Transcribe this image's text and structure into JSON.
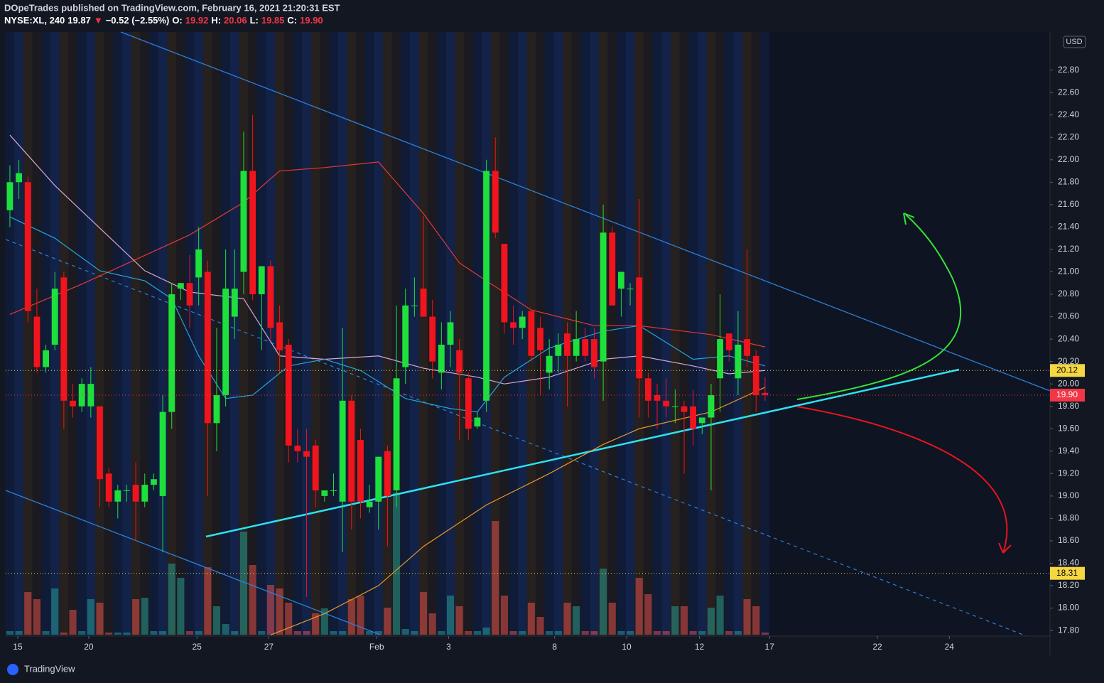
{
  "header": {
    "publisher": "DOpeTrades published on TradingView.com, February 16, 2021 21:20:31 EST",
    "legend": [
      {
        "text": "NYSE:XL, 240",
        "color": "#ffffff"
      },
      {
        "text": "19.87",
        "color": "#ffffff"
      },
      {
        "text": "▼",
        "color": "#f23645"
      },
      {
        "text": "−0.52 (−2.55%)",
        "color": "#ffffff"
      },
      {
        "text": "O:",
        "color": "#ffffff"
      },
      {
        "text": "19.92",
        "color": "#f23645"
      },
      {
        "text": "H:",
        "color": "#ffffff"
      },
      {
        "text": "20.06",
        "color": "#f23645"
      },
      {
        "text": "L:",
        "color": "#ffffff"
      },
      {
        "text": "19.85",
        "color": "#f23645"
      },
      {
        "text": "C:",
        "color": "#ffffff"
      },
      {
        "text": "19.90",
        "color": "#f23645"
      }
    ],
    "currency": "USD",
    "brand": "TradingView"
  },
  "chart_data": {
    "type": "candlestick",
    "xlim": [
      -0.47,
      115.7
    ],
    "xticks": [
      {
        "value": 0.87,
        "label": "15"
      },
      {
        "value": 8.77,
        "label": "20"
      },
      {
        "value": 20.8,
        "label": "25"
      },
      {
        "value": 28.8,
        "label": "27"
      },
      {
        "value": 40.8,
        "label": "Feb"
      },
      {
        "value": 48.8,
        "label": "3"
      },
      {
        "value": 60.6,
        "label": "8"
      },
      {
        "value": 68.6,
        "label": "10"
      },
      {
        "value": 76.7,
        "label": "12"
      },
      {
        "value": 84.5,
        "label": "17"
      },
      {
        "value": 96.5,
        "label": "22"
      },
      {
        "value": 104.5,
        "label": "24"
      }
    ],
    "ylim": [
      17.75,
      23.14
    ],
    "yticks": [
      {
        "value": 17.8,
        "label": "17.80"
      },
      {
        "value": 18,
        "label": "18.00"
      },
      {
        "value": 18.2,
        "label": "18.20"
      },
      {
        "value": 18.4,
        "label": "18.40"
      },
      {
        "value": 18.6,
        "label": "18.60"
      },
      {
        "value": 18.8,
        "label": "18.80"
      },
      {
        "value": 19,
        "label": "19.00"
      },
      {
        "value": 19.2,
        "label": "19.20"
      },
      {
        "value": 19.4,
        "label": "19.40"
      },
      {
        "value": 19.6,
        "label": "19.60"
      },
      {
        "value": 19.8,
        "label": "19.80"
      },
      {
        "value": 20,
        "label": "20.00"
      },
      {
        "value": 20.2,
        "label": "20.20"
      },
      {
        "value": 20.4,
        "label": "20.40"
      },
      {
        "value": 20.6,
        "label": "20.60"
      },
      {
        "value": 20.8,
        "label": "20.80"
      },
      {
        "value": 21,
        "label": "21.00"
      },
      {
        "value": 21.2,
        "label": "21.20"
      },
      {
        "value": 21.4,
        "label": "21.40"
      },
      {
        "value": 21.6,
        "label": "21.60"
      },
      {
        "value": 21.8,
        "label": "21.80"
      },
      {
        "value": 22,
        "label": "22.00"
      },
      {
        "value": 22.2,
        "label": "22.20"
      },
      {
        "value": 22.4,
        "label": "22.40"
      },
      {
        "value": 22.6,
        "label": "22.60"
      },
      {
        "value": 22.8,
        "label": "22.80"
      }
    ],
    "up_color": "#1ee03c",
    "down_color": "#f0141e",
    "volume_up_color": "rgba(38,166,154,0.5)",
    "volume_down_color": "rgba(239,83,80,0.5)",
    "open": [
      21.55,
      21.8,
      21.8,
      20.6,
      20.15,
      20.35,
      20.95,
      19.85,
      19.8,
      19.8,
      19.8,
      19.2,
      18.95,
      19.05,
      19.1,
      18.95,
      19.1,
      19.0,
      19.75,
      20.85,
      20.9,
      20.95,
      21.0,
      19.65,
      19.9,
      20.6,
      21.0,
      21.9,
      20.8,
      21.05,
      20.55,
      20.35,
      19.45,
      19.4,
      19.45,
      19.0,
      19.05,
      18.95,
      19.85,
      19.5,
      18.9,
      18.95,
      19.4,
      19.05,
      20.15,
      20.7,
      20.85,
      20.6,
      20.1,
      20.35,
      20.3,
      20.05,
      19.62,
      19.85,
      21.9,
      21.25,
      20.55,
      20.5,
      20.65,
      20.5,
      20.1,
      20.25,
      20.45,
      20.25,
      20.4,
      20.4,
      20.2,
      21.35,
      20.85,
      20.85,
      20.95,
      20.05,
      19.9,
      19.85,
      19.8,
      19.8,
      19.8,
      19.65,
      19.7,
      20.05,
      20.45,
      20.05,
      20.4,
      20.25,
      19.92
    ],
    "high": [
      21.95,
      22.0,
      21.85,
      20.85,
      20.35,
      21.0,
      21.0,
      20.0,
      20.05,
      20.15,
      19.8,
      19.25,
      19.1,
      19.1,
      19.3,
      19.2,
      19.2,
      19.9,
      20.9,
      20.9,
      21.15,
      21.4,
      21.1,
      20.5,
      21.2,
      21.2,
      22.25,
      22.4,
      21.05,
      21.1,
      20.7,
      20.4,
      19.6,
      19.6,
      19.5,
      19.05,
      19.2,
      20.5,
      19.9,
      19.6,
      19.1,
      19.35,
      19.45,
      20.7,
      20.85,
      20.95,
      21.5,
      20.75,
      20.55,
      20.65,
      20.4,
      20.1,
      19.75,
      22.0,
      22.2,
      21.25,
      20.7,
      20.65,
      20.65,
      20.6,
      20.4,
      20.45,
      20.55,
      20.65,
      20.5,
      20.5,
      21.6,
      21.4,
      21.0,
      20.9,
      21.65,
      20.1,
      20.0,
      20.05,
      19.95,
      19.85,
      19.95,
      19.7,
      20.0,
      20.8,
      20.45,
      20.65,
      21.2,
      20.3,
      20.06
    ],
    "low": [
      21.4,
      21.65,
      20.55,
      20.1,
      20.1,
      20.3,
      19.6,
      19.7,
      19.75,
      19.7,
      18.9,
      18.9,
      18.8,
      18.95,
      18.6,
      18.9,
      19.05,
      18.5,
      19.6,
      20.75,
      20.5,
      20.7,
      19.0,
      19.4,
      19.8,
      20.4,
      20.8,
      20.75,
      20.3,
      20.4,
      20.1,
      19.3,
      19.3,
      18.1,
      18.9,
      18.95,
      19.0,
      18.5,
      18.7,
      18.8,
      18.85,
      18.7,
      18.55,
      18.9,
      20.0,
      20.6,
      20.6,
      20.05,
      19.95,
      20.15,
      19.5,
      19.5,
      19.6,
      19.75,
      21.3,
      20.45,
      20.35,
      20.4,
      20.2,
      19.9,
      19.95,
      20.1,
      19.8,
      20.2,
      20.2,
      20.05,
      19.85,
      20.7,
      20.6,
      20.7,
      19.7,
      19.7,
      19.6,
      19.7,
      19.65,
      19.2,
      19.45,
      19.55,
      19.05,
      19.75,
      20.2,
      19.9,
      20.15,
      19.75,
      19.85
    ],
    "close": [
      21.8,
      21.88,
      20.65,
      20.15,
      20.3,
      20.85,
      19.85,
      19.8,
      20.0,
      20.0,
      19.15,
      18.95,
      19.05,
      19.05,
      18.95,
      19.1,
      19.15,
      19.75,
      20.8,
      20.9,
      20.7,
      21.2,
      19.65,
      19.9,
      20.85,
      20.85,
      21.9,
      20.8,
      21.05,
      20.5,
      20.3,
      19.45,
      19.4,
      19.35,
      19.05,
      19.05,
      19.05,
      19.85,
      18.95,
      18.95,
      18.95,
      19.35,
      19.0,
      20.05,
      20.7,
      20.7,
      20.6,
      20.2,
      20.35,
      20.55,
      20.1,
      19.6,
      19.7,
      21.9,
      21.35,
      20.55,
      20.5,
      20.6,
      20.25,
      20.3,
      20.25,
      20.35,
      20.25,
      20.4,
      20.25,
      20.15,
      21.35,
      20.7,
      21.0,
      20.85,
      20.05,
      19.85,
      19.85,
      19.8,
      19.8,
      19.75,
      19.6,
      19.7,
      19.9,
      20.4,
      20.3,
      20.35,
      20.25,
      19.9,
      19.9
    ],
    "volume": [
      5,
      5,
      60,
      50,
      5,
      65,
      3,
      35,
      5,
      50,
      45,
      3,
      3,
      3,
      50,
      52,
      5,
      5,
      100,
      80,
      5,
      5,
      95,
      40,
      15,
      5,
      145,
      98,
      5,
      70,
      65,
      45,
      5,
      5,
      30,
      37,
      5,
      5,
      50,
      55,
      5,
      5,
      38,
      200,
      8,
      5,
      60,
      30,
      5,
      55,
      40,
      5,
      5,
      10,
      160,
      55,
      5,
      5,
      45,
      25,
      5,
      5,
      45,
      40,
      5,
      5,
      93,
      45,
      5,
      5,
      80,
      57,
      5,
      5,
      40,
      40,
      5,
      5,
      38,
      55,
      5,
      5,
      50,
      40,
      3
    ],
    "moving_averages": [
      {
        "color": "#e53935",
        "x": [
          0,
          8,
          20,
          26,
          30,
          35,
          41,
          46,
          50,
          53,
          58,
          65,
          70,
          78,
          84
        ],
        "values": [
          20.62,
          20.89,
          21.33,
          21.62,
          21.9,
          21.93,
          21.98,
          21.52,
          21.08,
          20.92,
          20.66,
          20.52,
          20.52,
          20.44,
          20.33
        ]
      },
      {
        "color": "#d8a6d8",
        "x": [
          0,
          5,
          10,
          15,
          20,
          26,
          30,
          35,
          41,
          46,
          52,
          55,
          60,
          66,
          70,
          76,
          80,
          84
        ],
        "values": [
          22.22,
          21.77,
          21.39,
          21.01,
          20.82,
          20.76,
          20.25,
          20.22,
          20.25,
          20.14,
          20.06,
          20.0,
          20.06,
          20.22,
          20.25,
          20.16,
          20.09,
          20.12
        ]
      },
      {
        "color": "#26a4d8",
        "x": [
          0,
          5,
          10,
          15,
          18,
          21,
          24,
          27,
          31,
          35,
          39,
          44,
          49,
          52,
          55,
          60,
          66,
          70,
          76,
          80,
          84
        ],
        "values": [
          21.49,
          21.3,
          21.01,
          20.92,
          20.76,
          20.25,
          19.87,
          19.9,
          20.16,
          20.22,
          20.12,
          19.87,
          19.78,
          19.75,
          20.06,
          20.32,
          20.47,
          20.52,
          20.22,
          20.25,
          20.16
        ]
      },
      {
        "color": "#e89a2a",
        "x": [
          29,
          35,
          41,
          46,
          53,
          60,
          66,
          70,
          78,
          84
        ],
        "values": [
          17.76,
          17.95,
          18.2,
          18.55,
          18.92,
          19.2,
          19.46,
          19.6,
          19.75,
          19.97
        ]
      }
    ],
    "price_lines": [
      {
        "value": 20.12,
        "color": "#f5d742",
        "text_color": "#000000"
      },
      {
        "value": {
          "value": 19.9,
          "label": "19.90"
        },
        "color": "#f23645",
        "text_color": "#ffffff"
      },
      {
        "value": 18.31,
        "color": "#f5d742",
        "text_color": "#000000"
      }
    ]
  }
}
